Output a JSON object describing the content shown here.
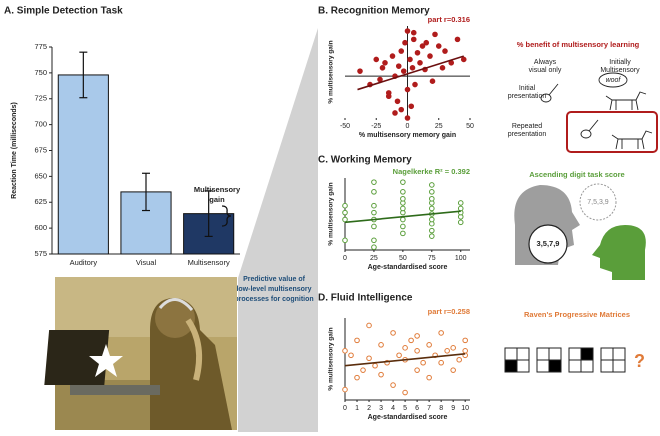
{
  "chart_data": [
    {
      "type": "bar",
      "title": "A. Simple Detection Task",
      "categories": [
        "Auditory",
        "Visual",
        "Multisensory"
      ],
      "values": [
        748,
        635,
        614
      ],
      "errors": [
        22,
        18,
        22
      ],
      "colors": [
        "#a9c9ea",
        "#a9c9ea",
        "#1f3864"
      ],
      "ylabel": "Reaction Time (milliseconds)",
      "ylim": [
        575,
        775
      ],
      "yticks": [
        575,
        600,
        625,
        650,
        675,
        700,
        725,
        750,
        775
      ],
      "annotation": [
        "Multisensory",
        "gain"
      ]
    },
    {
      "type": "scatter",
      "title": "B. Recognition Memory",
      "stat": "part r=0.316",
      "color": "#b01c1c",
      "filled": true,
      "trend_color": "#6b0f0f",
      "xlabel": "% multisensory memory gain",
      "ylabel": "% multisensory gain",
      "x": [
        -38,
        -30,
        -25,
        -22,
        -20,
        -18,
        -15,
        -12,
        -10,
        -8,
        -7,
        -5,
        -5,
        -3,
        -2,
        0,
        0,
        2,
        3,
        4,
        5,
        6,
        8,
        10,
        12,
        14,
        15,
        18,
        20,
        22,
        25,
        28,
        30,
        35,
        40,
        45,
        -10,
        -15,
        0,
        5
      ],
      "values": [
        3,
        -5,
        10,
        -2,
        5,
        8,
        -10,
        12,
        0,
        -15,
        6,
        15,
        -20,
        3,
        20,
        -8,
        27,
        10,
        -18,
        5,
        22,
        -5,
        14,
        8,
        18,
        4,
        20,
        12,
        -3,
        25,
        18,
        5,
        15,
        8,
        22,
        10,
        -22,
        -12,
        -25,
        26
      ],
      "trend": {
        "x": [
          -40,
          45
        ],
        "y": [
          -8,
          12
        ]
      },
      "xlim": [
        -50,
        50
      ],
      "xticks": [
        -50,
        -25,
        0,
        25,
        50
      ],
      "ylim": [
        -25,
        30
      ],
      "axes_cross_zero": true
    },
    {
      "type": "scatter",
      "title": "C. Working Memory",
      "stat": "Nagelkerke R² = 0.392",
      "color": "#5a9e3a",
      "filled": false,
      "trend_color": "#2e6b1a",
      "xlabel": "Age-standardised score",
      "ylabel": "% multisensory gain",
      "x": [
        0,
        0,
        0,
        0,
        25,
        25,
        25,
        25,
        25,
        25,
        25,
        25,
        50,
        50,
        50,
        50,
        50,
        50,
        50,
        50,
        50,
        75,
        75,
        75,
        75,
        75,
        75,
        75,
        75,
        75,
        75,
        100,
        100,
        100,
        100,
        100
      ],
      "values": [
        -15,
        0,
        5,
        10,
        -20,
        -15,
        -5,
        0,
        5,
        10,
        20,
        27,
        -10,
        -5,
        0,
        5,
        8,
        12,
        15,
        20,
        27,
        -12,
        -8,
        -3,
        0,
        4,
        8,
        12,
        15,
        20,
        25,
        -2,
        2,
        5,
        8,
        12
      ],
      "trend": {
        "x": [
          0,
          100
        ],
        "y": [
          -2,
          6
        ]
      },
      "xlim": [
        0,
        108
      ],
      "xticks": [
        0,
        25,
        50,
        75,
        100
      ],
      "ylim": [
        -22,
        30
      ],
      "axes_cross_zero": false
    },
    {
      "type": "scatter",
      "title": "D. Fluid Intelligence",
      "stat": "part r=0.258",
      "color": "#e07b39",
      "filled": false,
      "trend_color": "#5a2d0c",
      "xlabel": "Age-standardised score",
      "ylabel": "% multisensory gain",
      "x": [
        0,
        0,
        0.5,
        1,
        1,
        1.5,
        2,
        2,
        2.5,
        3,
        3,
        3.5,
        4,
        4,
        4.5,
        5,
        5,
        5,
        5.5,
        6,
        6,
        6,
        6.5,
        7,
        7,
        7.5,
        8,
        8,
        8.5,
        9,
        9,
        9.5,
        10,
        10,
        10
      ],
      "values": [
        -18,
        8,
        5,
        -10,
        15,
        -5,
        25,
        3,
        -2,
        12,
        -8,
        0,
        20,
        -15,
        5,
        10,
        -20,
        2,
        15,
        -5,
        8,
        18,
        0,
        12,
        -10,
        5,
        20,
        0,
        8,
        10,
        -5,
        2,
        15,
        8,
        5
      ],
      "trend": {
        "x": [
          0,
          10
        ],
        "y": [
          -2,
          6
        ]
      },
      "xlim": [
        0,
        10.4
      ],
      "xticks": [
        0,
        1,
        2,
        3,
        4,
        5,
        6,
        7,
        8,
        9,
        10
      ],
      "ylim": [
        -25,
        30
      ],
      "axes_cross_zero": false
    }
  ],
  "figure": {
    "predictive": [
      "Predictive value of",
      "low-level multisensory",
      "processes for cognition"
    ],
    "b_illustration": {
      "title": "% benefit of multisensory learning",
      "col1": [
        "Always",
        "visual only"
      ],
      "col2": [
        "Initially",
        "Multisensory"
      ],
      "row1": [
        "Initial",
        "presentation"
      ],
      "row2": [
        "Repeated",
        "presentation"
      ],
      "bubble": "woof"
    },
    "c_illustration": {
      "title": "Ascending digit task score",
      "heard": "7,5,3,9",
      "said": "3,5,7,9"
    },
    "d_illustration": {
      "title": "Raven's Progressive Matrices",
      "mark": "?"
    }
  }
}
